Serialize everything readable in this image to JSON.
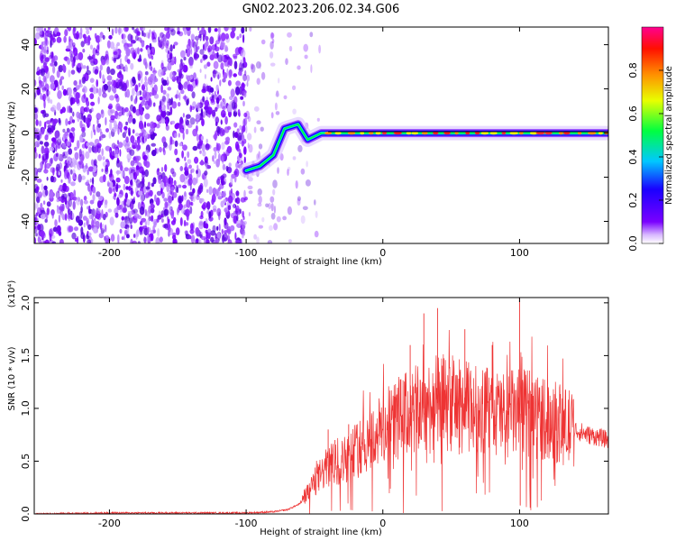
{
  "title": "GN02.2023.206.02.34.G06",
  "chart_data": [
    {
      "type": "heatmap",
      "title": "GN02.2023.206.02.34.G06",
      "xlabel": "Height of straight line (km)",
      "ylabel": "Frequency (Hz)",
      "xlim": [
        -255,
        165
      ],
      "ylim": [
        -50,
        48
      ],
      "x_ticks": [
        -200,
        -100,
        0,
        100
      ],
      "x_tick_labels": [
        "-200",
        "-100",
        "0",
        "100"
      ],
      "y_ticks": [
        -40,
        -20,
        0,
        20,
        40
      ],
      "y_tick_labels": [
        "-40",
        "-20",
        "0",
        "20",
        "40"
      ],
      "colorbar": {
        "label": "Normalized spectral amplitude",
        "range": [
          0,
          1
        ],
        "ticks": [
          0.0,
          0.2,
          0.4,
          0.6,
          0.8
        ],
        "tick_labels": [
          "0.0",
          "0.2",
          "0.4",
          "0.6",
          "0.8"
        ],
        "colors": [
          "#ffffff",
          "#7a00ff",
          "#0000ff",
          "#00c8ff",
          "#00ff00",
          "#ffff00",
          "#ff8000",
          "#ff0000",
          "#ff0080"
        ]
      },
      "noise_region_x": [
        -255,
        -75
      ],
      "signal_track": [
        {
          "x": -100,
          "y": -17
        },
        {
          "x": -90,
          "y": -15
        },
        {
          "x": -80,
          "y": -10
        },
        {
          "x": -72,
          "y": 2
        },
        {
          "x": -62,
          "y": 4
        },
        {
          "x": -55,
          "y": -3
        },
        {
          "x": -45,
          "y": 0
        },
        {
          "x": 0,
          "y": 0
        },
        {
          "x": 50,
          "y": 0
        },
        {
          "x": 100,
          "y": 0
        },
        {
          "x": 165,
          "y": 0
        }
      ]
    },
    {
      "type": "line",
      "xlabel": "Height of straight line (km)",
      "ylabel": "SNR (10 * v/v)",
      "y_scale_label": "(x10⁴)",
      "xlim": [
        -255,
        165
      ],
      "ylim": [
        0,
        2.05
      ],
      "x_ticks": [
        -200,
        -100,
        0,
        100
      ],
      "x_tick_labels": [
        "-200",
        "-100",
        "0",
        "100"
      ],
      "y_ticks": [
        0.0,
        0.5,
        1.0,
        1.5,
        2.0
      ],
      "y_tick_labels": [
        "0.0",
        "0.5",
        "1.0",
        "1.5",
        "2.0"
      ],
      "series": [
        {
          "color": "#ee3333",
          "x": [
            -255,
            -200,
            -150,
            -100,
            -80,
            -70,
            -60,
            -50,
            -40,
            -30,
            -20,
            -10,
            0,
            10,
            20,
            30,
            40,
            50,
            60,
            70,
            80,
            90,
            100,
            110,
            120,
            130,
            140,
            150,
            160,
            165
          ],
          "y": [
            0.0,
            0.01,
            0.01,
            0.01,
            0.02,
            0.04,
            0.1,
            0.3,
            0.45,
            0.5,
            0.6,
            0.7,
            0.8,
            0.9,
            0.95,
            1.0,
            1.05,
            1.05,
            1.0,
            1.0,
            0.95,
            0.95,
            0.95,
            0.95,
            0.9,
            0.85,
            0.8,
            0.75,
            0.72,
            0.7
          ]
        }
      ],
      "peaks": [
        {
          "x": -40,
          "y": 0.8
        },
        {
          "x": -35,
          "y": 0.7
        },
        {
          "x": -25,
          "y": 0.85
        },
        {
          "x": 20,
          "y": 1.6
        },
        {
          "x": 30,
          "y": 1.9
        },
        {
          "x": 40,
          "y": 1.95
        },
        {
          "x": 60,
          "y": 1.75
        },
        {
          "x": 80,
          "y": 1.6
        },
        {
          "x": 100,
          "y": 2.05
        },
        {
          "x": 100.5,
          "y": 0.08
        }
      ]
    }
  ]
}
